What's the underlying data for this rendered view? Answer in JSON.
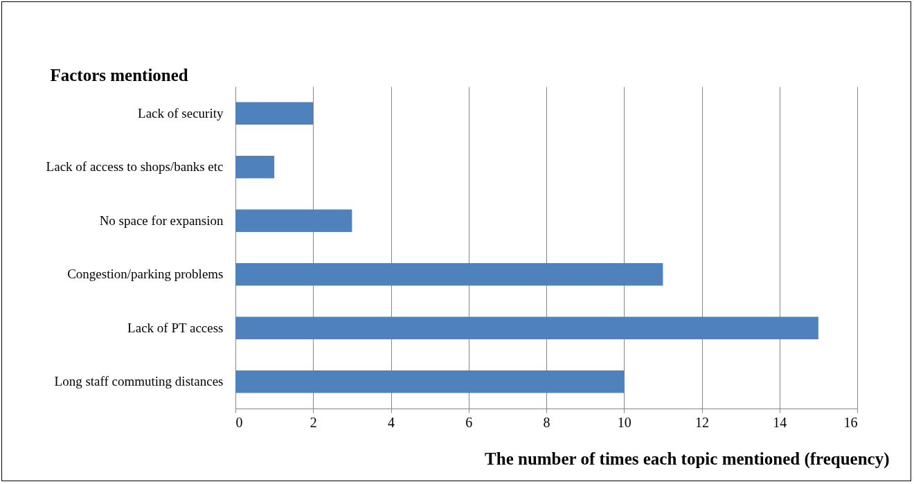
{
  "chart_data": {
    "type": "bar",
    "orientation": "horizontal",
    "xlabel": "The number of times each topic mentioned (frequency)",
    "ylabel": "Factors mentioned",
    "categories": [
      "Lack of security",
      "Lack of access to shops/banks etc",
      "No space for expansion",
      "Congestion/parking problems",
      "Lack of PT access",
      "Long staff commuting distances"
    ],
    "values": [
      2,
      1,
      3,
      11,
      15,
      10
    ],
    "color": "#4f81bd",
    "xlim": [
      0,
      16
    ],
    "xticks": [
      0,
      2,
      4,
      6,
      8,
      10,
      12,
      14,
      16
    ],
    "grid": "x"
  }
}
